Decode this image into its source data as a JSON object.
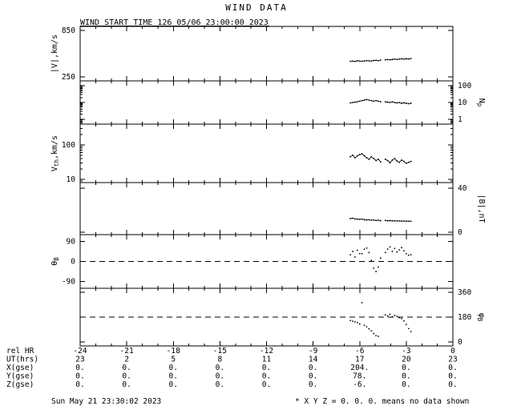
{
  "title": "WIND DATA",
  "subtitle": "WIND START TIME 126 05/06 23:00:00 2023",
  "footer": {
    "timestamp": "Sun May 21 23:30:02 2023",
    "note": "* X Y Z = 0. 0. 0. means no data shown"
  },
  "colors": {
    "foreground": "#000000",
    "background": "#ffffff"
  },
  "chart_data": {
    "type": "line",
    "title": "WIND DATA",
    "subtitle": "WIND START TIME 126 05/06 23:00:00 2023",
    "grid": false,
    "x_axis": {
      "min": -24,
      "max": 0,
      "major_ticks": [
        -24,
        -21,
        -18,
        -15,
        -12,
        -9,
        -6,
        -3,
        0
      ],
      "minor_step": 1,
      "label_rows": [
        {
          "label": "rel HR",
          "values": [
            "-24",
            "-21",
            "-18",
            "-15",
            "-12",
            "-9",
            "-6",
            "-3",
            "0"
          ]
        },
        {
          "label": "UT(hrs)",
          "values": [
            "23",
            "2",
            "5",
            "8",
            "11",
            "14",
            "17",
            "20",
            "23"
          ]
        },
        {
          "label": "X(gse)",
          "values": [
            "0.",
            "0.",
            "0.",
            "0.",
            "0.",
            "0.",
            "204.",
            "0.",
            "0."
          ]
        },
        {
          "label": "Y(gse)",
          "values": [
            "0.",
            "0.",
            "0.",
            "0.",
            "0.",
            "0.",
            "78.",
            "0.",
            "0."
          ]
        },
        {
          "label": "Z(gse)",
          "values": [
            "0.",
            "0.",
            "0.",
            "0.",
            "0.",
            "0.",
            "-6.",
            "0.",
            "0."
          ]
        }
      ]
    },
    "x_points": [
      -6.6,
      -6.45,
      -6.3,
      -6.15,
      -6.0,
      -5.85,
      -5.7,
      -5.55,
      -5.4,
      -5.25,
      -5.1,
      -4.95,
      -4.8,
      -4.65,
      -4.5,
      -4.35,
      -4.2,
      -4.05,
      -3.9,
      -3.75,
      -3.6,
      -3.45,
      -3.3,
      -3.15,
      -3.0,
      -2.85,
      -2.7
    ],
    "panels": [
      {
        "name": "flow-speed",
        "label": {
          "pre": "|V|,km/s"
        },
        "side": "left",
        "scale": "linear",
        "ylim": [
          200,
          900
        ],
        "ticks": [
          850,
          250
        ],
        "height": 68,
        "style": "line",
        "values": [
          452,
          455,
          450,
          458,
          455,
          452,
          456,
          460,
          457,
          455,
          462,
          465,
          460,
          468,
          null,
          470,
          474,
          470,
          476,
          480,
          475,
          480,
          483,
          479,
          485,
          482,
          487
        ]
      },
      {
        "name": "proton-density",
        "label": {
          "pre": "N",
          "sub": "p"
        },
        "side": "right",
        "scale": "log",
        "ylim": [
          0.5,
          200
        ],
        "ticks": [
          100,
          10,
          1
        ],
        "height": 54,
        "style": "line",
        "values": [
          9.5,
          10,
          10.5,
          11,
          12,
          13,
          14,
          15,
          14,
          13,
          12,
          13,
          12,
          11,
          null,
          11,
          10.5,
          10,
          11,
          10,
          9.5,
          10,
          9,
          9.5,
          9,
          8.5,
          9
        ]
      },
      {
        "name": "thermal-speed",
        "label": {
          "pre": "V",
          "sub": "th",
          "post": ",km/s"
        },
        "side": "left",
        "scale": "log",
        "ylim": [
          8,
          400
        ],
        "ticks": [
          100,
          10
        ],
        "height": 73,
        "style": "line",
        "values": [
          45,
          50,
          42,
          48,
          52,
          55,
          48,
          42,
          38,
          45,
          40,
          35,
          38,
          32,
          null,
          38,
          35,
          30,
          36,
          40,
          34,
          31,
          36,
          33,
          29,
          31,
          33
        ]
      },
      {
        "name": "field-magnitude",
        "label": {
          "pre": "|B|,nT"
        },
        "side": "right",
        "scale": "linear",
        "ylim": [
          -2,
          45
        ],
        "ticks": [
          40,
          0
        ],
        "height": 65,
        "style": "line",
        "values": [
          12.5,
          12.8,
          12.2,
          12.0,
          11.8,
          12.0,
          11.5,
          11.2,
          11.4,
          11.0,
          11.2,
          10.8,
          11.0,
          10.6,
          null,
          10.8,
          10.5,
          10.6,
          10.4,
          10.5,
          10.3,
          10.4,
          10.2,
          10.3,
          10.1,
          10.2,
          10.0
        ]
      },
      {
        "name": "theta-b",
        "label": {
          "pre": "θ",
          "sub": "B"
        },
        "side": "left",
        "scale": "linear",
        "ylim": [
          -120,
          120
        ],
        "ticks": [
          90,
          0,
          -90
        ],
        "height": 67,
        "style": "dots",
        "dashed_at": [
          0
        ],
        "values": [
          30,
          45,
          20,
          50,
          35,
          35,
          55,
          60,
          40,
          5,
          -30,
          -45,
          -25,
          15,
          null,
          40,
          55,
          65,
          45,
          58,
          42,
          52,
          62,
          48,
          35,
          28,
          30
        ]
      },
      {
        "name": "phi-b",
        "label": {
          "pre": "φ",
          "sub": "B"
        },
        "side": "right",
        "scale": "linear",
        "ylim": [
          -30,
          390
        ],
        "ticks": [
          360,
          180,
          0
        ],
        "height": 72,
        "style": "dots",
        "dashed_at": [
          180
        ],
        "values": [
          155,
          150,
          145,
          140,
          130,
          285,
          120,
          110,
          95,
          80,
          60,
          45,
          40,
          null,
          null,
          195,
          188,
          200,
          182,
          192,
          186,
          176,
          170,
          152,
          126,
          96,
          75
        ]
      }
    ]
  }
}
